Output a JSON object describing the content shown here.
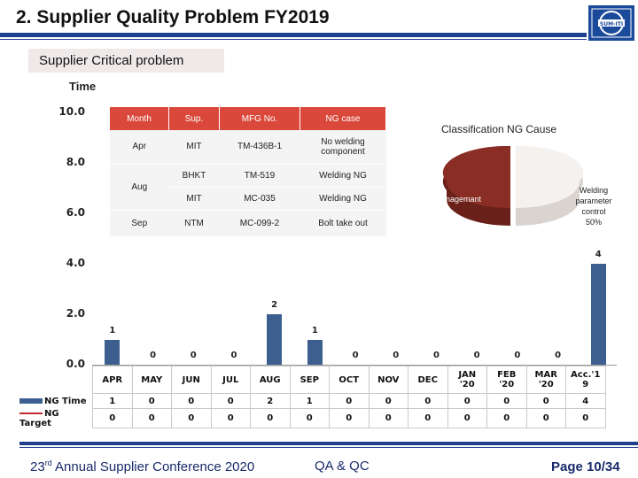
{
  "header": {
    "title": "2. Supplier Quality Problem FY2019",
    "subtitle": "Supplier Critical problem",
    "logo_text": "SUM-ITI"
  },
  "chart_data": {
    "type": "bar",
    "ylabel": "Time",
    "ylim": [
      0,
      10
    ],
    "yticks": [
      "10.0",
      "8.0",
      "6.0",
      "4.0",
      "2.0",
      "0.0"
    ],
    "categories": [
      "APR",
      "MAY",
      "JUN",
      "JUL",
      "AUG",
      "SEP",
      "OCT",
      "NOV",
      "DEC",
      "JAN '20",
      "FEB '20",
      "MAR '20",
      "Acc.'1 9"
    ],
    "category_lines": [
      [
        "APR"
      ],
      [
        "MAY"
      ],
      [
        "JUN"
      ],
      [
        "JUL"
      ],
      [
        "AUG"
      ],
      [
        "SEP"
      ],
      [
        "OCT"
      ],
      [
        "NOV"
      ],
      [
        "DEC"
      ],
      [
        "JAN",
        "'20"
      ],
      [
        "FEB",
        "'20"
      ],
      [
        "MAR",
        "'20"
      ],
      [
        "Acc.'1",
        "9"
      ]
    ],
    "series": [
      {
        "name": "NG Time",
        "values": [
          1,
          0,
          0,
          0,
          2,
          1,
          0,
          0,
          0,
          0,
          0,
          0,
          4
        ],
        "color": "#3d5f8f"
      },
      {
        "name": "NG Target",
        "values": [
          0,
          0,
          0,
          0,
          0,
          0,
          0,
          0,
          0,
          0,
          0,
          0,
          0
        ],
        "color": "#c0282d"
      }
    ]
  },
  "ng_table": {
    "headers": [
      "Month",
      "Sup.",
      "MFG No.",
      "NG case"
    ],
    "rows": [
      {
        "month": "Apr",
        "sup": "MIT",
        "mfg": "TM-436B-1",
        "ng": "No welding component"
      },
      {
        "month": "Aug",
        "sup": "BHKT",
        "mfg": "TM-519",
        "ng": "Welding NG"
      },
      {
        "month": "",
        "sup": "MIT",
        "mfg": "MC-035",
        "ng": "Welding NG"
      },
      {
        "month": "Sep",
        "sup": "NTM",
        "mfg": "MC-099-2",
        "ng": "Bolt take out"
      }
    ]
  },
  "pie": {
    "title": "Classification NG Cause",
    "left_label": "anagemant",
    "right_label_lines": [
      "Welding",
      "parameter",
      "control",
      "50%"
    ],
    "colors": [
      "#8a2e25",
      "#f4f1ef"
    ]
  },
  "footer": {
    "left_prefix": "23",
    "left_sup": "rd",
    "left_rest": " Annual Supplier Conference 2020",
    "middle": "QA & QC",
    "page": "Page 10/34"
  }
}
